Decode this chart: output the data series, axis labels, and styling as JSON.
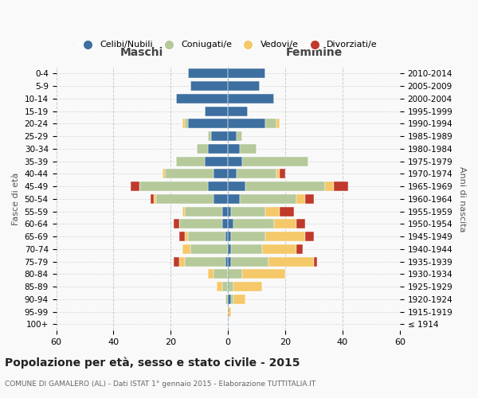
{
  "age_groups": [
    "100+",
    "95-99",
    "90-94",
    "85-89",
    "80-84",
    "75-79",
    "70-74",
    "65-69",
    "60-64",
    "55-59",
    "50-54",
    "45-49",
    "40-44",
    "35-39",
    "30-34",
    "25-29",
    "20-24",
    "15-19",
    "10-14",
    "5-9",
    "0-4"
  ],
  "birth_years": [
    "≤ 1914",
    "1915-1919",
    "1920-1924",
    "1925-1929",
    "1930-1934",
    "1935-1939",
    "1940-1944",
    "1945-1949",
    "1950-1954",
    "1955-1959",
    "1960-1964",
    "1965-1969",
    "1970-1974",
    "1975-1979",
    "1980-1984",
    "1985-1989",
    "1990-1994",
    "1995-1999",
    "2000-2004",
    "2005-2009",
    "2010-2014"
  ],
  "maschi": {
    "celibi": [
      0,
      0,
      0,
      0,
      0,
      1,
      0,
      1,
      2,
      2,
      5,
      7,
      5,
      8,
      7,
      6,
      14,
      8,
      18,
      13,
      14
    ],
    "coniugati": [
      0,
      0,
      1,
      2,
      5,
      14,
      13,
      13,
      15,
      13,
      20,
      24,
      17,
      10,
      4,
      1,
      1,
      0,
      0,
      0,
      0
    ],
    "vedovi": [
      0,
      0,
      0,
      2,
      2,
      2,
      3,
      1,
      0,
      1,
      1,
      0,
      1,
      0,
      0,
      0,
      1,
      0,
      0,
      0,
      0
    ],
    "divorziati": [
      0,
      0,
      0,
      0,
      0,
      2,
      0,
      2,
      2,
      0,
      1,
      3,
      0,
      0,
      0,
      0,
      0,
      0,
      0,
      0,
      0
    ]
  },
  "femmine": {
    "nubili": [
      0,
      0,
      1,
      0,
      0,
      1,
      1,
      1,
      2,
      1,
      4,
      6,
      3,
      5,
      4,
      3,
      13,
      7,
      16,
      11,
      13
    ],
    "coniugate": [
      0,
      0,
      1,
      2,
      5,
      13,
      11,
      12,
      14,
      12,
      20,
      28,
      14,
      23,
      6,
      2,
      4,
      0,
      0,
      0,
      0
    ],
    "vedove": [
      0,
      1,
      4,
      10,
      15,
      16,
      12,
      14,
      8,
      5,
      3,
      3,
      1,
      0,
      0,
      0,
      1,
      0,
      0,
      0,
      0
    ],
    "divorziate": [
      0,
      0,
      0,
      0,
      0,
      1,
      2,
      3,
      3,
      5,
      3,
      5,
      2,
      0,
      0,
      0,
      0,
      0,
      0,
      0,
      0
    ]
  },
  "colors": {
    "celibi": "#3d6fa0",
    "coniugati": "#b5c99a",
    "vedovi": "#f5c869",
    "divorziati": "#c0392b"
  },
  "xlim": 60,
  "title": "Popolazione per età, sesso e stato civile - 2015",
  "subtitle": "COMUNE DI GAMALERO (AL) - Dati ISTAT 1° gennaio 2015 - Elaborazione TUTTITALIA.IT",
  "bg_color": "#f9f9f9",
  "grid_color": "#cccccc"
}
